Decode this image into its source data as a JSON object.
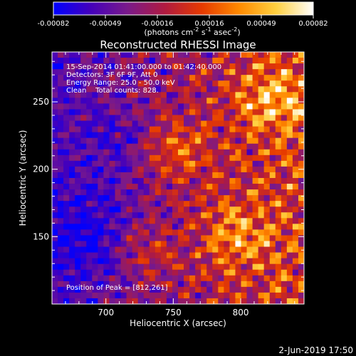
{
  "colorbar": {
    "ticks": [
      "-0.00082",
      "-0.00049",
      "-0.00016",
      "0.00016",
      "0.00049",
      "0.00082"
    ],
    "units_base": "(photons cm",
    "units_sup1": "-2",
    "units_mid": " s",
    "units_sup2": "-1",
    "units_mid2": " asec",
    "units_sup3": "-2",
    "units_end": ")",
    "stops": [
      "#0000ff",
      "#4400bb",
      "#7a1a8a",
      "#b01a40",
      "#e63a00",
      "#ff8a00",
      "#ffd040",
      "#ffffff"
    ]
  },
  "annotations": {
    "line1": "15-Sep-2014 01:41:00.000 to 01:42:40.000",
    "line2": "Detectors: 3F 6F 9F, Att 0",
    "line3": "Energy Range: 25.0 - 50.0 keV",
    "line4": "Clean    Total counts: 828.",
    "peak": "Position of Peak = [812,261]"
  },
  "footer": {
    "timestamp": "2-Jun-2019 17:50"
  },
  "chart_data": {
    "type": "heatmap",
    "title": "Reconstructed RHESSI Image",
    "xlabel": "Heliocentric X (arcsec)",
    "ylabel": "Heliocentric Y (arcsec)",
    "xlim": [
      660,
      847
    ],
    "ylim": [
      100,
      287
    ],
    "xticks": [
      700,
      750,
      800
    ],
    "yticks": [
      150,
      200,
      250
    ],
    "zlim": [
      -0.00082,
      0.00082
    ],
    "peak": [
      812,
      261
    ]
  }
}
